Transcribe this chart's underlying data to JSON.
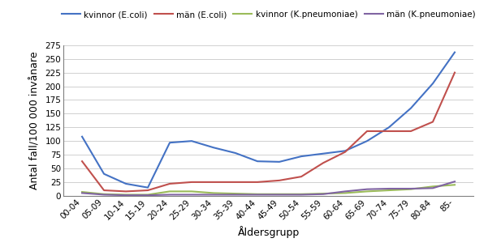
{
  "categories": [
    "00-04",
    "05-09",
    "10-14",
    "15-19",
    "20-24",
    "25-29",
    "30-34",
    "35-39",
    "40-44",
    "45-49",
    "50-54",
    "55-59",
    "60-64",
    "65-69",
    "70-74",
    "75-79",
    "80-84",
    "85-"
  ],
  "kvinnor_ecoli": [
    108,
    40,
    22,
    15,
    97,
    100,
    88,
    78,
    63,
    62,
    72,
    77,
    82,
    100,
    125,
    160,
    205,
    262
  ],
  "man_ecoli": [
    63,
    10,
    8,
    10,
    22,
    25,
    25,
    25,
    25,
    28,
    35,
    60,
    80,
    118,
    118,
    118,
    135,
    225
  ],
  "kvinnor_kpneum": [
    7,
    3,
    2,
    2,
    8,
    8,
    5,
    4,
    3,
    3,
    3,
    4,
    5,
    8,
    10,
    12,
    17,
    20
  ],
  "man_kpneum": [
    5,
    2,
    1,
    1,
    2,
    2,
    2,
    2,
    2,
    2,
    2,
    3,
    8,
    12,
    13,
    13,
    14,
    26
  ],
  "colors": {
    "kvinnor_ecoli": "#4472C4",
    "man_ecoli": "#C0504D",
    "kvinnor_kpneum": "#9BBB59",
    "man_kpneum": "#8064A2"
  },
  "legend_labels": [
    "kvinnor (E.coli)",
    "män (E.coli)",
    "kvinnor (K.pneumoniae)",
    "män (K.pneumoniae)"
  ],
  "xlabel": "Åldersgrupp",
  "ylabel": "Antal fall/100 000 invånare",
  "ylim": [
    0,
    275
  ],
  "yticks": [
    0,
    25,
    50,
    75,
    100,
    125,
    150,
    175,
    200,
    225,
    250,
    275
  ],
  "tick_fontsize": 7.5,
  "axis_label_fontsize": 9,
  "legend_fontsize": 7.5,
  "linewidth": 1.5,
  "figwidth": 6.01,
  "figheight": 3.1,
  "dpi": 100
}
